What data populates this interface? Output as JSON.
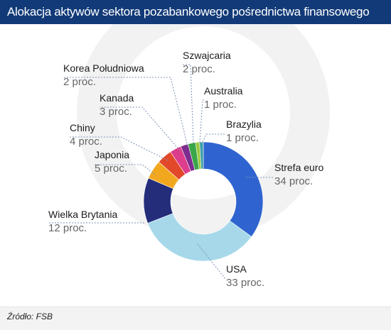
{
  "title": "Alokacja aktywów sektora pozabankowego pośrednictwa finansowego",
  "source": "Źródło: FSB",
  "colors": {
    "title_bg": "#123a78",
    "label_name": "#1a1a1a",
    "label_value": "#666666",
    "leader_line": "#7f93b5"
  },
  "chart_data": {
    "type": "pie",
    "variant": "donut",
    "unit": "proc.",
    "slices": [
      {
        "name": "Strefa euro",
        "value": 34,
        "value_label": "34 proc.",
        "color": "#2f64d0"
      },
      {
        "name": "USA",
        "value": 33,
        "value_label": "33 proc.",
        "color": "#a6d8ea"
      },
      {
        "name": "Wielka Brytania",
        "value": 12,
        "value_label": "12 proc.",
        "color": "#232d7a"
      },
      {
        "name": "Japonia",
        "value": 5,
        "value_label": "5 proc.",
        "color": "#f2a81e"
      },
      {
        "name": "Chiny",
        "value": 4,
        "value_label": "4 proc.",
        "color": "#e2492b"
      },
      {
        "name": "Kanada",
        "value": 3,
        "value_label": "3 proc.",
        "color": "#dc3d8c"
      },
      {
        "name": "Korea Południowa",
        "value": 2,
        "value_label": "2 proc.",
        "color": "#7d2c8f"
      },
      {
        "name": "Szwajcaria",
        "value": 2,
        "value_label": "2 proc.",
        "color": "#3aa64a"
      },
      {
        "name": "Australia",
        "value": 1,
        "value_label": "1 proc.",
        "color": "#98c93c"
      },
      {
        "name": "Brazylia",
        "value": 1,
        "value_label": "1 proc.",
        "color": "#3fa0aa"
      }
    ]
  }
}
